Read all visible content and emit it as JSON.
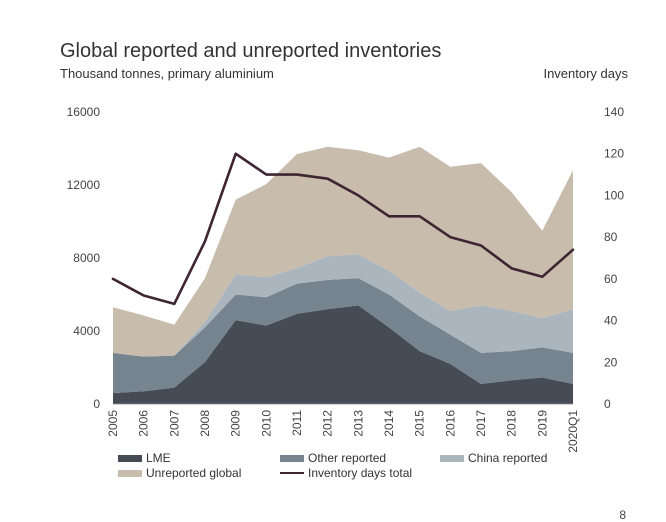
{
  "title": "Global reported and unreported inventories",
  "subtitle": "Thousand tonnes, primary aluminium",
  "y2_title": "Inventory days",
  "page_number": "8",
  "colors": {
    "lme": "#454c55",
    "other": "#76848f",
    "china": "#abb5be",
    "unreported": "#c8bcad",
    "days": "#3e2530"
  },
  "chart_data": {
    "type": "area",
    "categories": [
      "2005",
      "2006",
      "2007",
      "2008",
      "2009",
      "2010",
      "2011",
      "2012",
      "2013",
      "2014",
      "2015",
      "2016",
      "2017",
      "2018",
      "2019",
      "2020Q1"
    ],
    "stacked": true,
    "ylim": [
      0,
      16000
    ],
    "y_ticks": [
      "0",
      "4000",
      "8000",
      "12000",
      "16000"
    ],
    "y2lim": [
      0,
      140
    ],
    "y2_ticks": [
      "0",
      "20",
      "40",
      "60",
      "80",
      "100",
      "120",
      "140"
    ],
    "series": [
      {
        "name": "LME",
        "values": [
          600,
          700,
          900,
          2300,
          4600,
          4300,
          4950,
          5200,
          5400,
          4200,
          2900,
          2200,
          1100,
          1300,
          1450,
          1100
        ]
      },
      {
        "name": "Other reported",
        "values": [
          2200,
          1900,
          1750,
          1900,
          1400,
          1550,
          1650,
          1600,
          1500,
          1800,
          1900,
          1600,
          1700,
          1600,
          1650,
          1700
        ]
      },
      {
        "name": "China reported",
        "values": [
          0,
          0,
          0,
          300,
          1100,
          1100,
          850,
          1300,
          1300,
          1300,
          1300,
          1300,
          2600,
          2200,
          1600,
          2400
        ]
      },
      {
        "name": "Unreported global",
        "values": [
          2500,
          2250,
          1700,
          2400,
          4100,
          5100,
          6250,
          6000,
          5700,
          6200,
          8000,
          7900,
          7800,
          6500,
          4800,
          7600
        ]
      }
    ],
    "line_series": {
      "name": "Inventory days total",
      "axis": "right",
      "values": [
        60,
        52,
        48,
        78,
        120,
        110,
        110,
        108,
        100,
        90,
        90,
        80,
        76,
        65,
        61,
        74
      ]
    },
    "legend": [
      "LME",
      "Other reported",
      "China reported",
      "Unreported global",
      "Inventory days total"
    ],
    "grid": false,
    "legend_position": "bottom"
  }
}
